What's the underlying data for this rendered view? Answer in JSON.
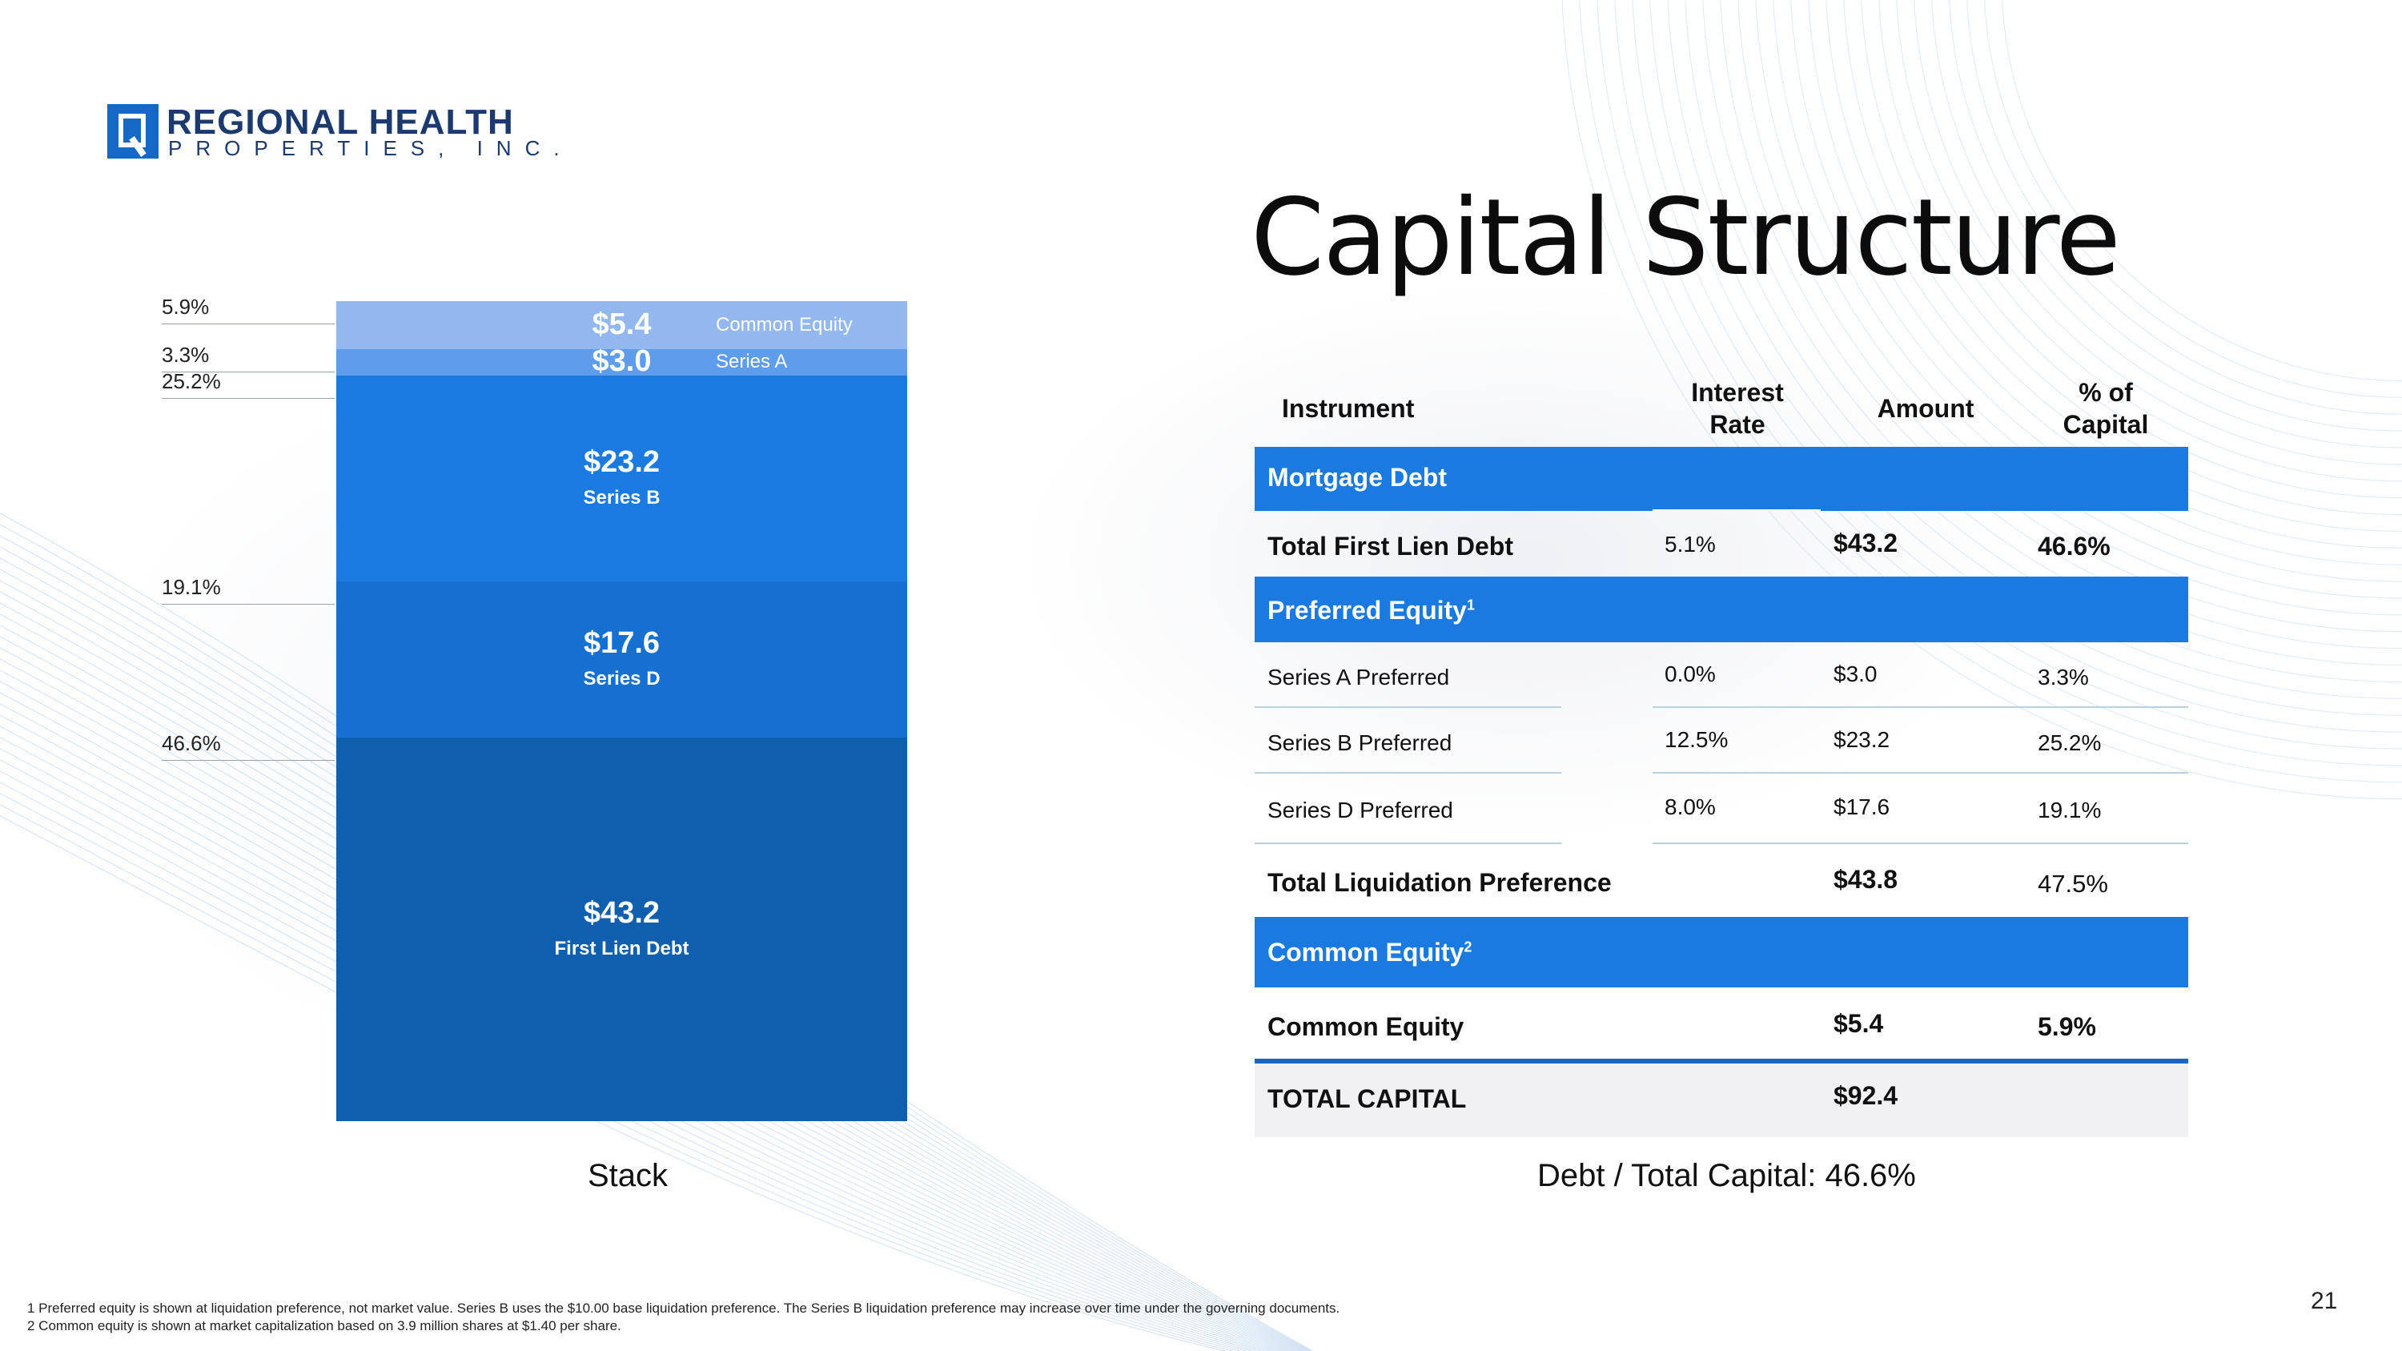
{
  "brand": {
    "name": "REGIONAL HEALTH",
    "sub": "PROPERTIES, INC."
  },
  "title": "Capital Structure",
  "chart_data": {
    "type": "bar",
    "stacked": true,
    "unit": "$M",
    "categories": [
      "Stack"
    ],
    "series": [
      {
        "name": "First Lien Debt",
        "values": [
          43.2
        ],
        "value_label": "$43.2",
        "percent_label": "46.6%",
        "color": "#0f5fae"
      },
      {
        "name": "Series D",
        "values": [
          17.6
        ],
        "value_label": "$17.6",
        "percent_label": "19.1%",
        "color": "#1570d1"
      },
      {
        "name": "Series B",
        "values": [
          23.2
        ],
        "value_label": "$23.2",
        "percent_label": "25.2%",
        "color": "#1a7ae0"
      },
      {
        "name": "Series A",
        "values": [
          3.0
        ],
        "value_label": "$3.0",
        "percent_label": "3.3%",
        "color": "#5e9cec"
      },
      {
        "name": "Common Equity",
        "values": [
          5.4
        ],
        "value_label": "$5.4",
        "percent_label": "5.9%",
        "color": "#93b8f0"
      }
    ],
    "total": 92.4,
    "xlabel": "Stack"
  },
  "table": {
    "headers": {
      "instrument": "Instrument",
      "rate": "Interest Rate",
      "amount": "Amount",
      "pct": "% of Capital"
    },
    "sections": {
      "mortgage": "Mortgage Debt",
      "preferred": "Preferred Equity",
      "preferred_sup": "1",
      "common": "Common Equity",
      "common_sup": "2"
    },
    "rows": {
      "first_lien": {
        "name": "Total First Lien Debt",
        "rate": "5.1%",
        "amount": "$43.2",
        "pct": "46.6%"
      },
      "series_a": {
        "name": "Series A Preferred",
        "rate": "0.0%",
        "amount": "$3.0",
        "pct": "3.3%"
      },
      "series_b": {
        "name": "Series B Preferred",
        "rate": "12.5%",
        "amount": "$23.2",
        "pct": "25.2%"
      },
      "series_d": {
        "name": "Series D Preferred",
        "rate": "8.0%",
        "amount": "$17.6",
        "pct": "19.1%"
      },
      "liq_pref": {
        "name": "Total Liquidation Preference",
        "amount": "$43.8",
        "pct": "47.5%"
      },
      "common": {
        "name": "Common Equity",
        "amount": "$5.4",
        "pct": "5.9%"
      },
      "total": {
        "name": "TOTAL CAPITAL",
        "amount": "$92.4"
      }
    }
  },
  "debt_ratio": "Debt / Total Capital: 46.6%",
  "footnotes": [
    "1  Preferred equity is shown at liquidation preference, not market value. Series B uses the $10.00 base liquidation preference. The Series B liquidation preference may increase over time under the governing documents.",
    "2  Common equity is shown at market capitalization based on 3.9 million shares at $1.40 per share."
  ],
  "page_number": "21"
}
